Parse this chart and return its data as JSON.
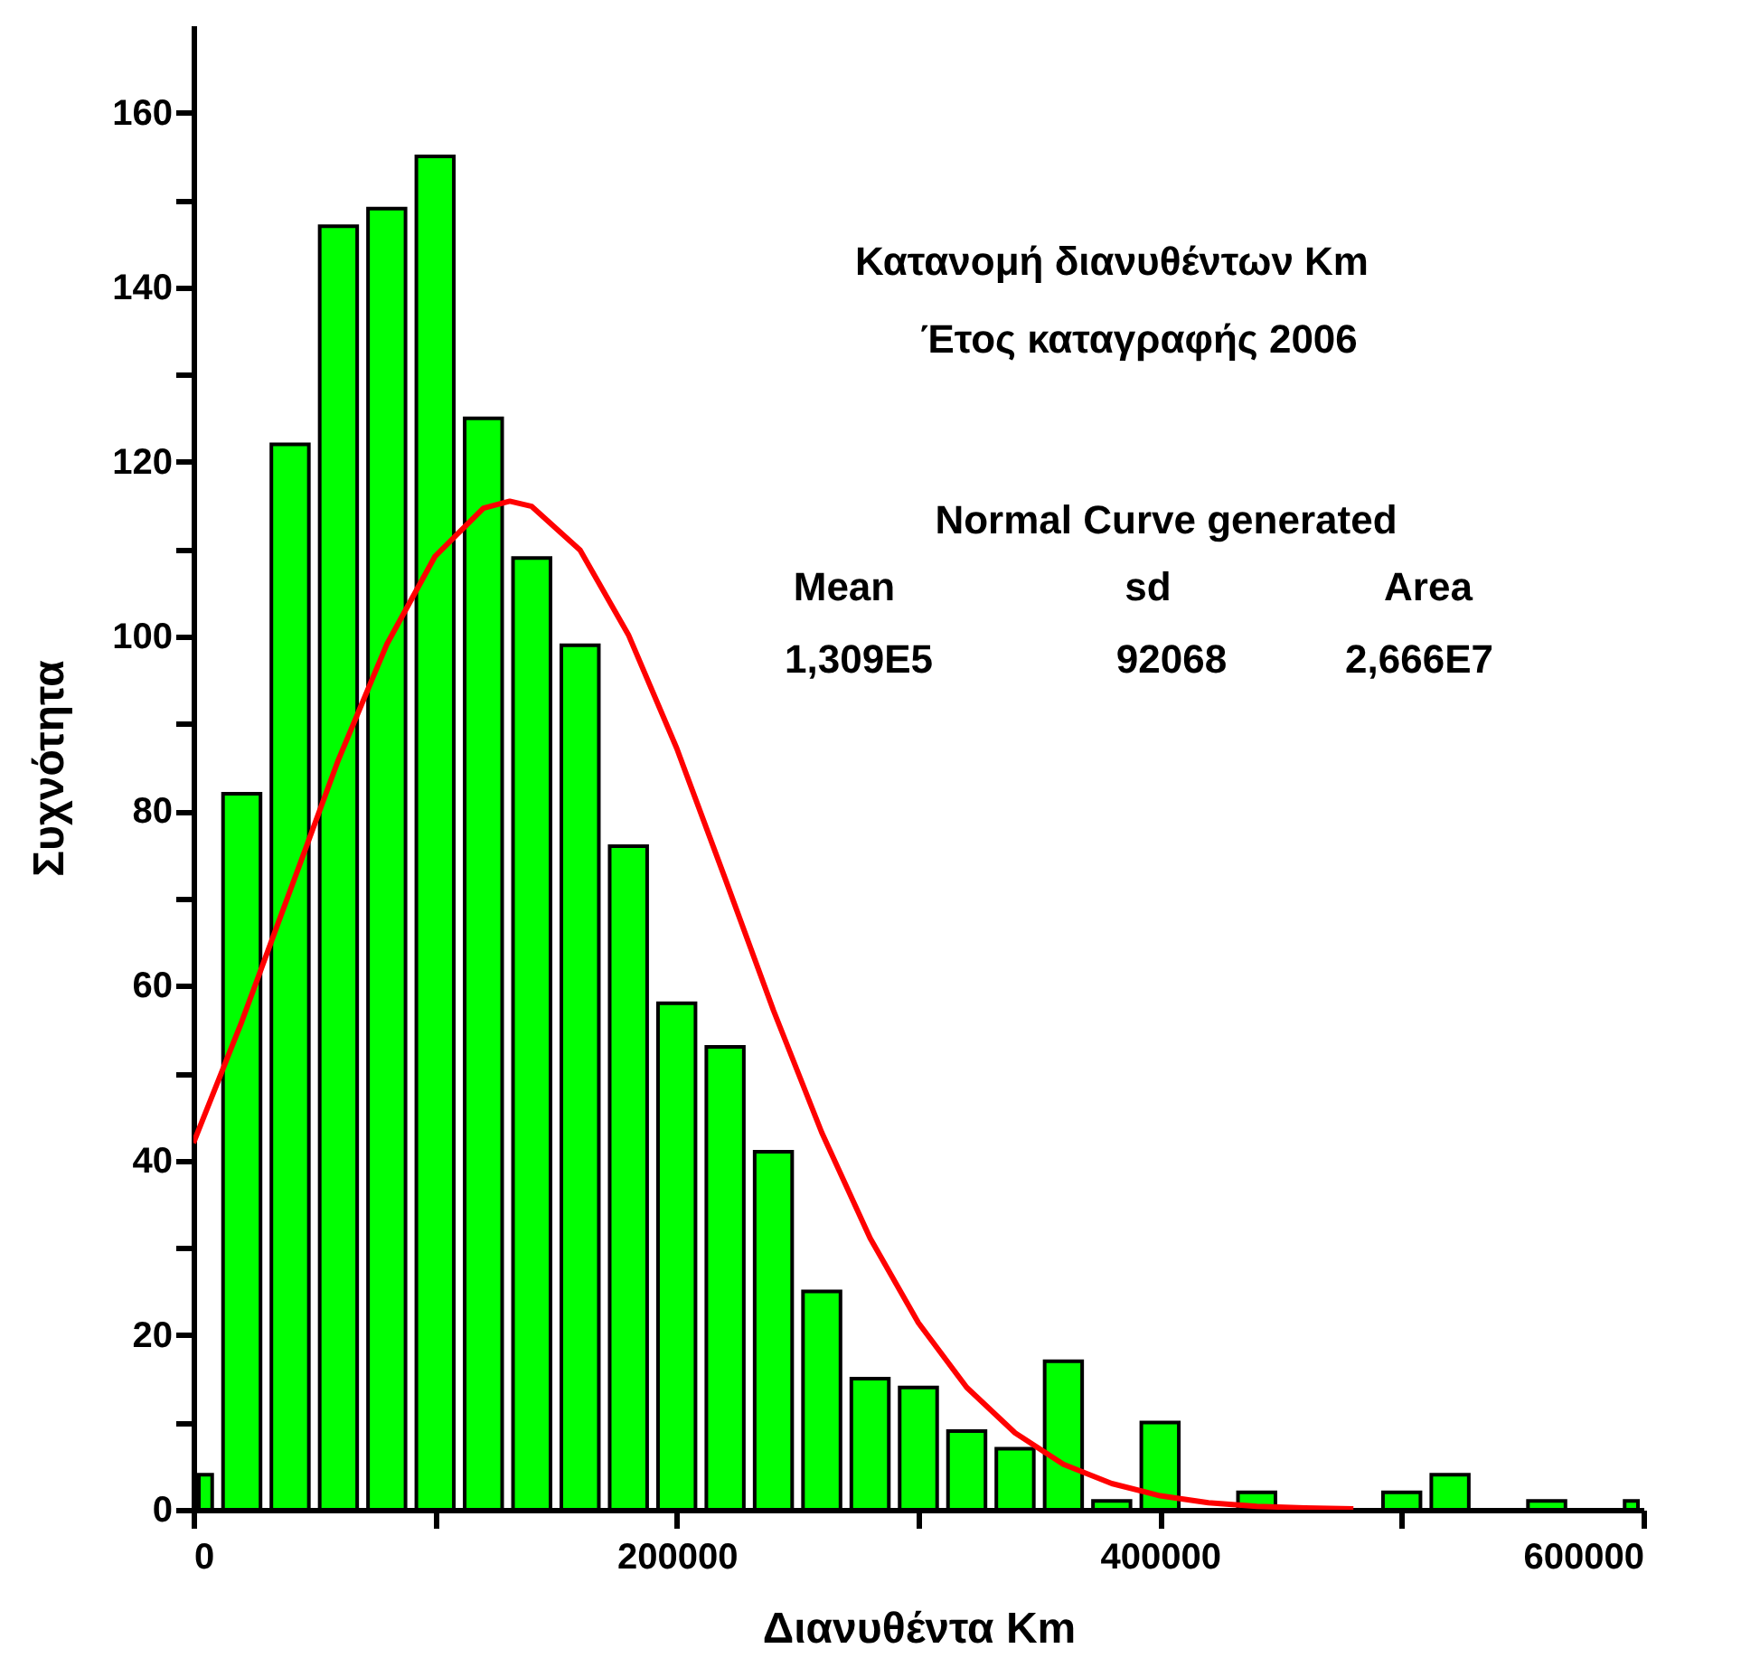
{
  "chart_data": {
    "type": "histogram",
    "xlabel": "Διανυθέντα Km",
    "ylabel": "Συχνότητα",
    "annotations": [
      "Κατανομή διανυθέντων Km",
      "Έτος καταγραφής 2006",
      "Normal Curve generated",
      "Mean",
      "sd",
      "Area",
      "1,309E5",
      "92068",
      "2,666E7"
    ],
    "xlim": [
      0,
      600000
    ],
    "xticks": [
      0,
      {
        "value": 100000,
        "label": null
      },
      200000,
      {
        "value": 300000,
        "label": null
      },
      400000,
      {
        "value": 500000,
        "label": null
      },
      600000
    ],
    "ylim": [
      0,
      170
    ],
    "yticks": [
      0,
      {
        "value": 10,
        "label": null
      },
      20,
      {
        "value": 30,
        "label": null
      },
      40,
      {
        "value": 50,
        "label": null
      },
      60,
      {
        "value": 70,
        "label": null
      },
      80,
      {
        "value": 90,
        "label": null
      },
      100,
      {
        "value": 110,
        "label": null
      },
      120,
      {
        "value": 130,
        "label": null
      },
      140,
      {
        "value": 150,
        "label": null
      },
      160
    ],
    "grid": false,
    "series": [
      {
        "color": "#00ff00",
        "bins": [
          0,
          10000,
          30000,
          50000,
          70000,
          90000,
          110000,
          130000,
          150000,
          170000,
          190000,
          210000,
          230000,
          250000,
          270000,
          290000,
          310000,
          330000,
          350000,
          370000,
          390000,
          410000,
          430000,
          450000,
          490000,
          510000,
          530000,
          550000,
          570000,
          590000,
          600000
        ],
        "values": [
          4,
          82,
          122,
          147,
          149,
          155,
          125,
          109,
          99,
          76,
          58,
          53,
          41,
          25,
          15,
          14,
          9,
          7,
          17,
          1,
          10,
          0,
          2,
          0,
          2,
          4,
          0,
          1,
          0,
          1
        ]
      },
      {
        "type": "line",
        "color": "#ff0000",
        "x": [
          0,
          20000,
          40000,
          60000,
          80000,
          100000,
          120000,
          130900,
          140000,
          160000,
          180000,
          200000,
          220000,
          240000,
          260000,
          280000,
          300000,
          320000,
          340000,
          360000,
          380000,
          400000,
          420000,
          440000,
          460000,
          480000
        ],
        "values": [
          42,
          55.9,
          70.9,
          85.9,
          99.1,
          109.2,
          114.7,
          115.5,
          114.9,
          109.9,
          100.2,
          87.2,
          72.3,
          57.2,
          43.2,
          31.1,
          21.4,
          14,
          8.8,
          5.2,
          3,
          1.6,
          0.8,
          0.4,
          0.2,
          0.1
        ]
      }
    ]
  }
}
